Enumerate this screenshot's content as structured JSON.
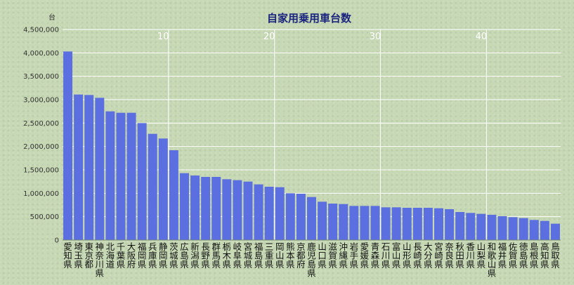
{
  "chart_data": {
    "type": "bar",
    "title": "自家用乗用車台数",
    "ylabel": "台",
    "ylim": [
      0,
      4500000
    ],
    "yticks": [
      0,
      500000,
      1000000,
      1500000,
      2000000,
      2500000,
      3000000,
      3500000,
      4000000,
      4500000
    ],
    "ytick_labels": [
      "0",
      "500,000",
      "1,000,000",
      "1,500,000",
      "2,000,000",
      "2,500,000",
      "3,000,000",
      "3,500,000",
      "4,000,000",
      "4,500,000"
    ],
    "rank_labels": [
      "10",
      "20",
      "30",
      "40"
    ],
    "grid": true,
    "bar_color": "#5b6fe0",
    "categories": [
      "愛知県",
      "埼玉県",
      "東京都",
      "神奈川県",
      "北海道",
      "千葉県",
      "大阪府",
      "福岡県",
      "兵庫県",
      "静岡県",
      "茨城県",
      "広島県",
      "新潟県",
      "長野県",
      "群馬県",
      "栃木県",
      "岐阜県",
      "宮城県",
      "福島県",
      "三重県",
      "岡山県",
      "熊本県",
      "京都府",
      "鹿児島県",
      "山口県",
      "滋賀県",
      "沖縄県",
      "岩手県",
      "愛媛県",
      "青森県",
      "石川県",
      "富山県",
      "山形県",
      "長崎県",
      "大分県",
      "宮崎県",
      "奈良県",
      "秋田県",
      "香川県",
      "山梨県",
      "和歌山県",
      "福井県",
      "佐賀県",
      "徳島県",
      "島根県",
      "高知県",
      "鳥取県"
    ],
    "values": [
      4030000,
      3110000,
      3100000,
      3040000,
      2750000,
      2720000,
      2720000,
      2500000,
      2270000,
      2170000,
      1920000,
      1430000,
      1380000,
      1350000,
      1350000,
      1300000,
      1280000,
      1250000,
      1190000,
      1140000,
      1130000,
      1000000,
      990000,
      920000,
      820000,
      780000,
      770000,
      730000,
      730000,
      730000,
      700000,
      700000,
      690000,
      690000,
      690000,
      680000,
      660000,
      600000,
      580000,
      560000,
      540000,
      510000,
      490000,
      470000,
      430000,
      410000,
      350000
    ]
  }
}
